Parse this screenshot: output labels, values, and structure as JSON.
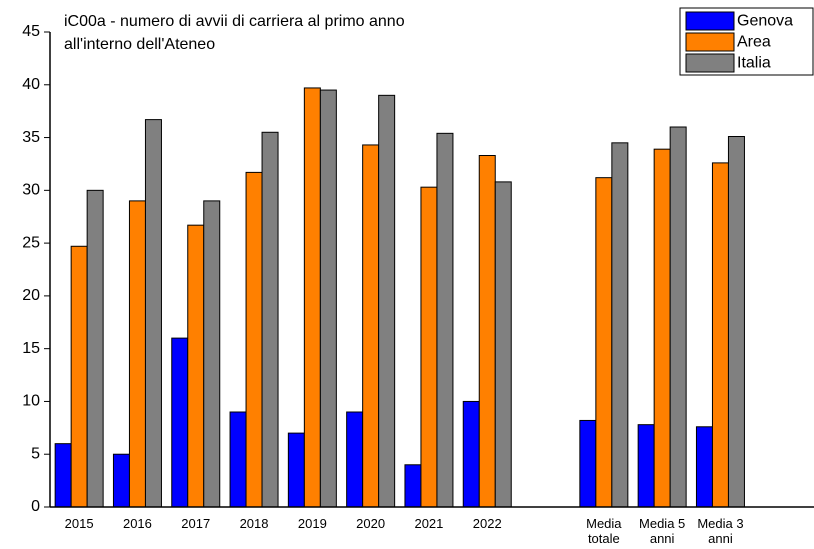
{
  "chart_data": {
    "type": "bar",
    "title": [
      "iC00a - numero di avvii di carriera al primo anno",
      "all'interno dell'Ateneo"
    ],
    "categories": [
      "2015",
      "2016",
      "2017",
      "2018",
      "2019",
      "2020",
      "2021",
      "2022",
      null,
      "Media totale",
      "Media 5 anni",
      "Media 3 anni"
    ],
    "series": [
      {
        "name": "Genova",
        "color": "#0000ff",
        "values": [
          6,
          5,
          16,
          9,
          7,
          9,
          4,
          10,
          null,
          8.2,
          7.8,
          7.6
        ]
      },
      {
        "name": "Area",
        "color": "#ff8000",
        "values": [
          24.7,
          29,
          26.7,
          31.7,
          39.7,
          34.3,
          30.3,
          33.3,
          null,
          31.2,
          33.9,
          32.6
        ]
      },
      {
        "name": "Italia",
        "color": "#808080",
        "values": [
          30,
          36.7,
          29,
          35.5,
          39.5,
          39,
          35.4,
          30.8,
          null,
          34.5,
          36,
          35.1
        ]
      }
    ],
    "ylim": [
      0,
      45
    ],
    "yticks": [
      0,
      5,
      10,
      15,
      20,
      25,
      30,
      35,
      40,
      45
    ],
    "legend": "top-right",
    "grid": false
  }
}
